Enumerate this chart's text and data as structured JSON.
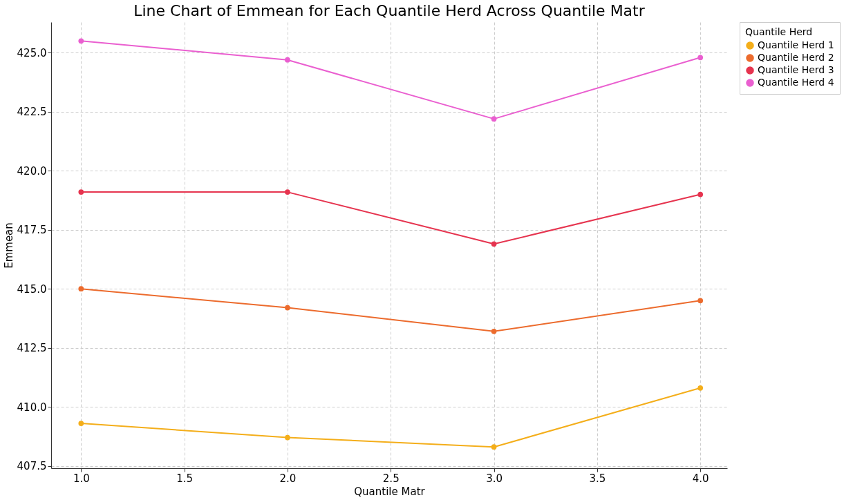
{
  "chart_data": {
    "type": "line",
    "title": "Line Chart of Emmean for Each Quantile Herd Across Quantile Matr",
    "xlabel": "Quantile Matr",
    "ylabel": "Emmean",
    "legend_title": "Quantile Herd",
    "x": [
      1.0,
      2.0,
      3.0,
      4.0
    ],
    "series": [
      {
        "name": "Quantile Herd 1",
        "color": "#f4ae1a",
        "values": [
          409.3,
          408.7,
          408.3,
          410.8
        ]
      },
      {
        "name": "Quantile Herd 2",
        "color": "#ec6b2d",
        "values": [
          415.0,
          414.2,
          413.2,
          414.5
        ]
      },
      {
        "name": "Quantile Herd 3",
        "color": "#e6344f",
        "values": [
          419.1,
          419.1,
          416.9,
          419.0
        ]
      },
      {
        "name": "Quantile Herd 4",
        "color": "#ea5fd0",
        "values": [
          425.5,
          424.7,
          422.2,
          424.8
        ]
      }
    ],
    "xlim": [
      0.855,
      4.13
    ],
    "ylim": [
      407.4,
      426.3
    ],
    "xticks": [
      {
        "value": 1.0,
        "label": "1.0"
      },
      {
        "value": 1.5,
        "label": "1.5"
      },
      {
        "value": 2.0,
        "label": "2.0"
      },
      {
        "value": 2.5,
        "label": "2.5"
      },
      {
        "value": 3.0,
        "label": "3.0"
      },
      {
        "value": 3.5,
        "label": "3.5"
      },
      {
        "value": 4.0,
        "label": "4.0"
      }
    ],
    "yticks": [
      {
        "value": 407.5,
        "label": "407.5"
      },
      {
        "value": 410.0,
        "label": "410.0"
      },
      {
        "value": 412.5,
        "label": "412.5"
      },
      {
        "value": 415.0,
        "label": "415.0"
      },
      {
        "value": 417.5,
        "label": "417.5"
      },
      {
        "value": 420.0,
        "label": "420.0"
      },
      {
        "value": 422.5,
        "label": "422.5"
      },
      {
        "value": 425.0,
        "label": "425.0"
      }
    ],
    "grid": true,
    "legend": "right",
    "marker": "circle",
    "line_style": "solid"
  }
}
